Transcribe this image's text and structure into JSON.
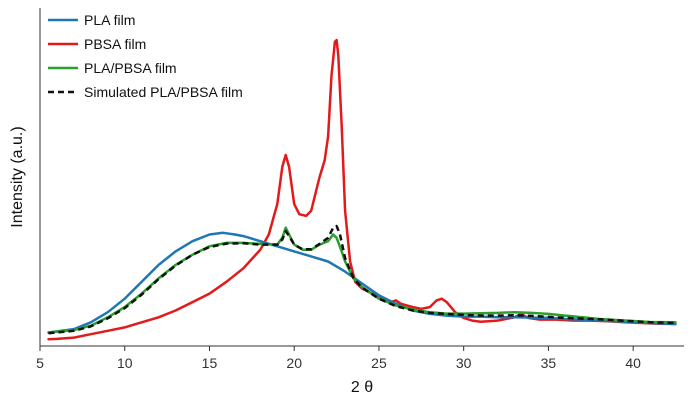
{
  "chart_data": {
    "type": "line",
    "title": "",
    "xlabel": "2 θ",
    "ylabel": "Intensity (a.u.)",
    "xlim": [
      5,
      43
    ],
    "ylim": [
      0,
      100
    ],
    "x_ticks": [
      5,
      10,
      15,
      20,
      25,
      30,
      35,
      40
    ],
    "y_ticks_shown": false,
    "grid": false,
    "legend_position": "top-left",
    "series": [
      {
        "name": "PLA film",
        "color": "#1f77b4",
        "dash": "solid",
        "points": [
          [
            5.5,
            4
          ],
          [
            7,
            5
          ],
          [
            8,
            7
          ],
          [
            9,
            10
          ],
          [
            10,
            14
          ],
          [
            11,
            19
          ],
          [
            12,
            24
          ],
          [
            13,
            28
          ],
          [
            14,
            31
          ],
          [
            15,
            33
          ],
          [
            15.8,
            33.5
          ],
          [
            16.5,
            33
          ],
          [
            17,
            32.5
          ],
          [
            18,
            31
          ],
          [
            19,
            29.5
          ],
          [
            20,
            28
          ],
          [
            21,
            26.5
          ],
          [
            22,
            25
          ],
          [
            23,
            22
          ],
          [
            24,
            18.5
          ],
          [
            25,
            15
          ],
          [
            26,
            12.5
          ],
          [
            27,
            10.5
          ],
          [
            28,
            9.5
          ],
          [
            29,
            9
          ],
          [
            30,
            8.7
          ],
          [
            31,
            8.7
          ],
          [
            32,
            8.5
          ],
          [
            33,
            8.5
          ],
          [
            34,
            8.4
          ],
          [
            35,
            8.3
          ],
          [
            36,
            8
          ],
          [
            37,
            7.8
          ],
          [
            38,
            7.5
          ],
          [
            39,
            7.3
          ],
          [
            40,
            7
          ],
          [
            41,
            6.8
          ],
          [
            42.5,
            6.5
          ]
        ]
      },
      {
        "name": "PBSA film",
        "color": "#e31a1c",
        "dash": "solid",
        "points": [
          [
            5.5,
            2
          ],
          [
            6,
            2.1
          ],
          [
            7,
            2.5
          ],
          [
            8,
            3.5
          ],
          [
            9,
            4.5
          ],
          [
            10,
            5.5
          ],
          [
            11,
            7
          ],
          [
            12,
            8.5
          ],
          [
            13,
            10.5
          ],
          [
            14,
            13
          ],
          [
            15,
            15.5
          ],
          [
            16,
            19
          ],
          [
            17,
            23
          ],
          [
            18,
            28.5
          ],
          [
            18.5,
            33
          ],
          [
            19,
            42
          ],
          [
            19.3,
            53
          ],
          [
            19.5,
            56.5
          ],
          [
            19.7,
            53
          ],
          [
            20,
            42
          ],
          [
            20.3,
            39
          ],
          [
            20.7,
            38.5
          ],
          [
            21,
            40
          ],
          [
            21.3,
            46
          ],
          [
            21.5,
            50
          ],
          [
            21.8,
            55
          ],
          [
            22,
            62
          ],
          [
            22.2,
            80
          ],
          [
            22.4,
            90
          ],
          [
            22.5,
            90.5
          ],
          [
            22.6,
            86
          ],
          [
            22.8,
            65
          ],
          [
            23,
            40
          ],
          [
            23.3,
            25
          ],
          [
            23.6,
            19
          ],
          [
            24,
            17
          ],
          [
            25,
            14.5
          ],
          [
            25.7,
            13
          ],
          [
            26,
            13.5
          ],
          [
            26.3,
            12.5
          ],
          [
            27,
            11.5
          ],
          [
            27.5,
            11
          ],
          [
            28,
            11.5
          ],
          [
            28.4,
            13.5
          ],
          [
            28.7,
            14
          ],
          [
            29,
            13
          ],
          [
            29.5,
            10
          ],
          [
            30,
            8.3
          ],
          [
            30.5,
            7.5
          ],
          [
            31,
            7.2
          ],
          [
            32,
            7.5
          ],
          [
            33,
            8.5
          ],
          [
            33.4,
            9.5
          ],
          [
            33.8,
            8.3
          ],
          [
            34.5,
            7.8
          ],
          [
            35.5,
            7.8
          ],
          [
            36.5,
            7.5
          ],
          [
            37.5,
            7.5
          ],
          [
            38.5,
            7.3
          ],
          [
            39.5,
            7
          ],
          [
            40.5,
            6.8
          ],
          [
            41.5,
            6.6
          ],
          [
            42.5,
            6.5
          ]
        ]
      },
      {
        "name": "PLA/PBSA film",
        "color": "#2ca02c",
        "dash": "solid",
        "points": [
          [
            5.5,
            4
          ],
          [
            7,
            4.7
          ],
          [
            8,
            6
          ],
          [
            9,
            8.5
          ],
          [
            10,
            11.5
          ],
          [
            11,
            15.5
          ],
          [
            12,
            20
          ],
          [
            13,
            24
          ],
          [
            14,
            27
          ],
          [
            15,
            29.5
          ],
          [
            16,
            30.5
          ],
          [
            17,
            30.5
          ],
          [
            18,
            30.2
          ],
          [
            19,
            30
          ],
          [
            19.3,
            32
          ],
          [
            19.5,
            35
          ],
          [
            19.7,
            33
          ],
          [
            20,
            30
          ],
          [
            20.5,
            28.5
          ],
          [
            21,
            28.5
          ],
          [
            21.5,
            30
          ],
          [
            22,
            31
          ],
          [
            22.3,
            33
          ],
          [
            22.5,
            32
          ],
          [
            22.8,
            28
          ],
          [
            23,
            25
          ],
          [
            23.5,
            20
          ],
          [
            24,
            17.5
          ],
          [
            25,
            14
          ],
          [
            26,
            12
          ],
          [
            27,
            10.8
          ],
          [
            28,
            10
          ],
          [
            29,
            9.6
          ],
          [
            30,
            9.6
          ],
          [
            31,
            9.7
          ],
          [
            32,
            9.8
          ],
          [
            33,
            10
          ],
          [
            34,
            9.8
          ],
          [
            35,
            9.5
          ],
          [
            36,
            9
          ],
          [
            37,
            8.5
          ],
          [
            38,
            8
          ],
          [
            39,
            7.7
          ],
          [
            40,
            7.4
          ],
          [
            41,
            7.1
          ],
          [
            42.5,
            7
          ]
        ]
      },
      {
        "name": "Simulated PLA/PBSA film",
        "color": "#111111",
        "dash": "dashed",
        "points": [
          [
            5.5,
            3.8
          ],
          [
            7,
            4.5
          ],
          [
            8,
            5.8
          ],
          [
            9,
            8.2
          ],
          [
            10,
            11.2
          ],
          [
            11,
            15.2
          ],
          [
            12,
            19.8
          ],
          [
            13,
            23.8
          ],
          [
            14,
            27
          ],
          [
            15,
            29.3
          ],
          [
            16,
            30.3
          ],
          [
            17,
            30.4
          ],
          [
            18,
            30
          ],
          [
            19,
            30
          ],
          [
            19.3,
            31.5
          ],
          [
            19.5,
            34
          ],
          [
            19.7,
            32.5
          ],
          [
            20,
            30
          ],
          [
            20.5,
            28.6
          ],
          [
            21,
            28.6
          ],
          [
            21.5,
            30.2
          ],
          [
            22,
            32
          ],
          [
            22.3,
            35
          ],
          [
            22.5,
            35.5
          ],
          [
            22.7,
            33
          ],
          [
            23,
            26
          ],
          [
            23.5,
            20
          ],
          [
            24,
            17.3
          ],
          [
            25,
            14
          ],
          [
            26,
            11.8
          ],
          [
            27,
            10.5
          ],
          [
            28,
            9.8
          ],
          [
            29,
            9.5
          ],
          [
            30,
            9.2
          ],
          [
            31,
            9
          ],
          [
            32,
            9
          ],
          [
            33,
            9.1
          ],
          [
            34,
            8.9
          ],
          [
            35,
            8.6
          ],
          [
            36,
            8.3
          ],
          [
            37,
            8.1
          ],
          [
            38,
            7.9
          ],
          [
            39,
            7.6
          ],
          [
            40,
            7.3
          ],
          [
            41,
            7
          ],
          [
            42.5,
            6.8
          ]
        ]
      }
    ]
  }
}
